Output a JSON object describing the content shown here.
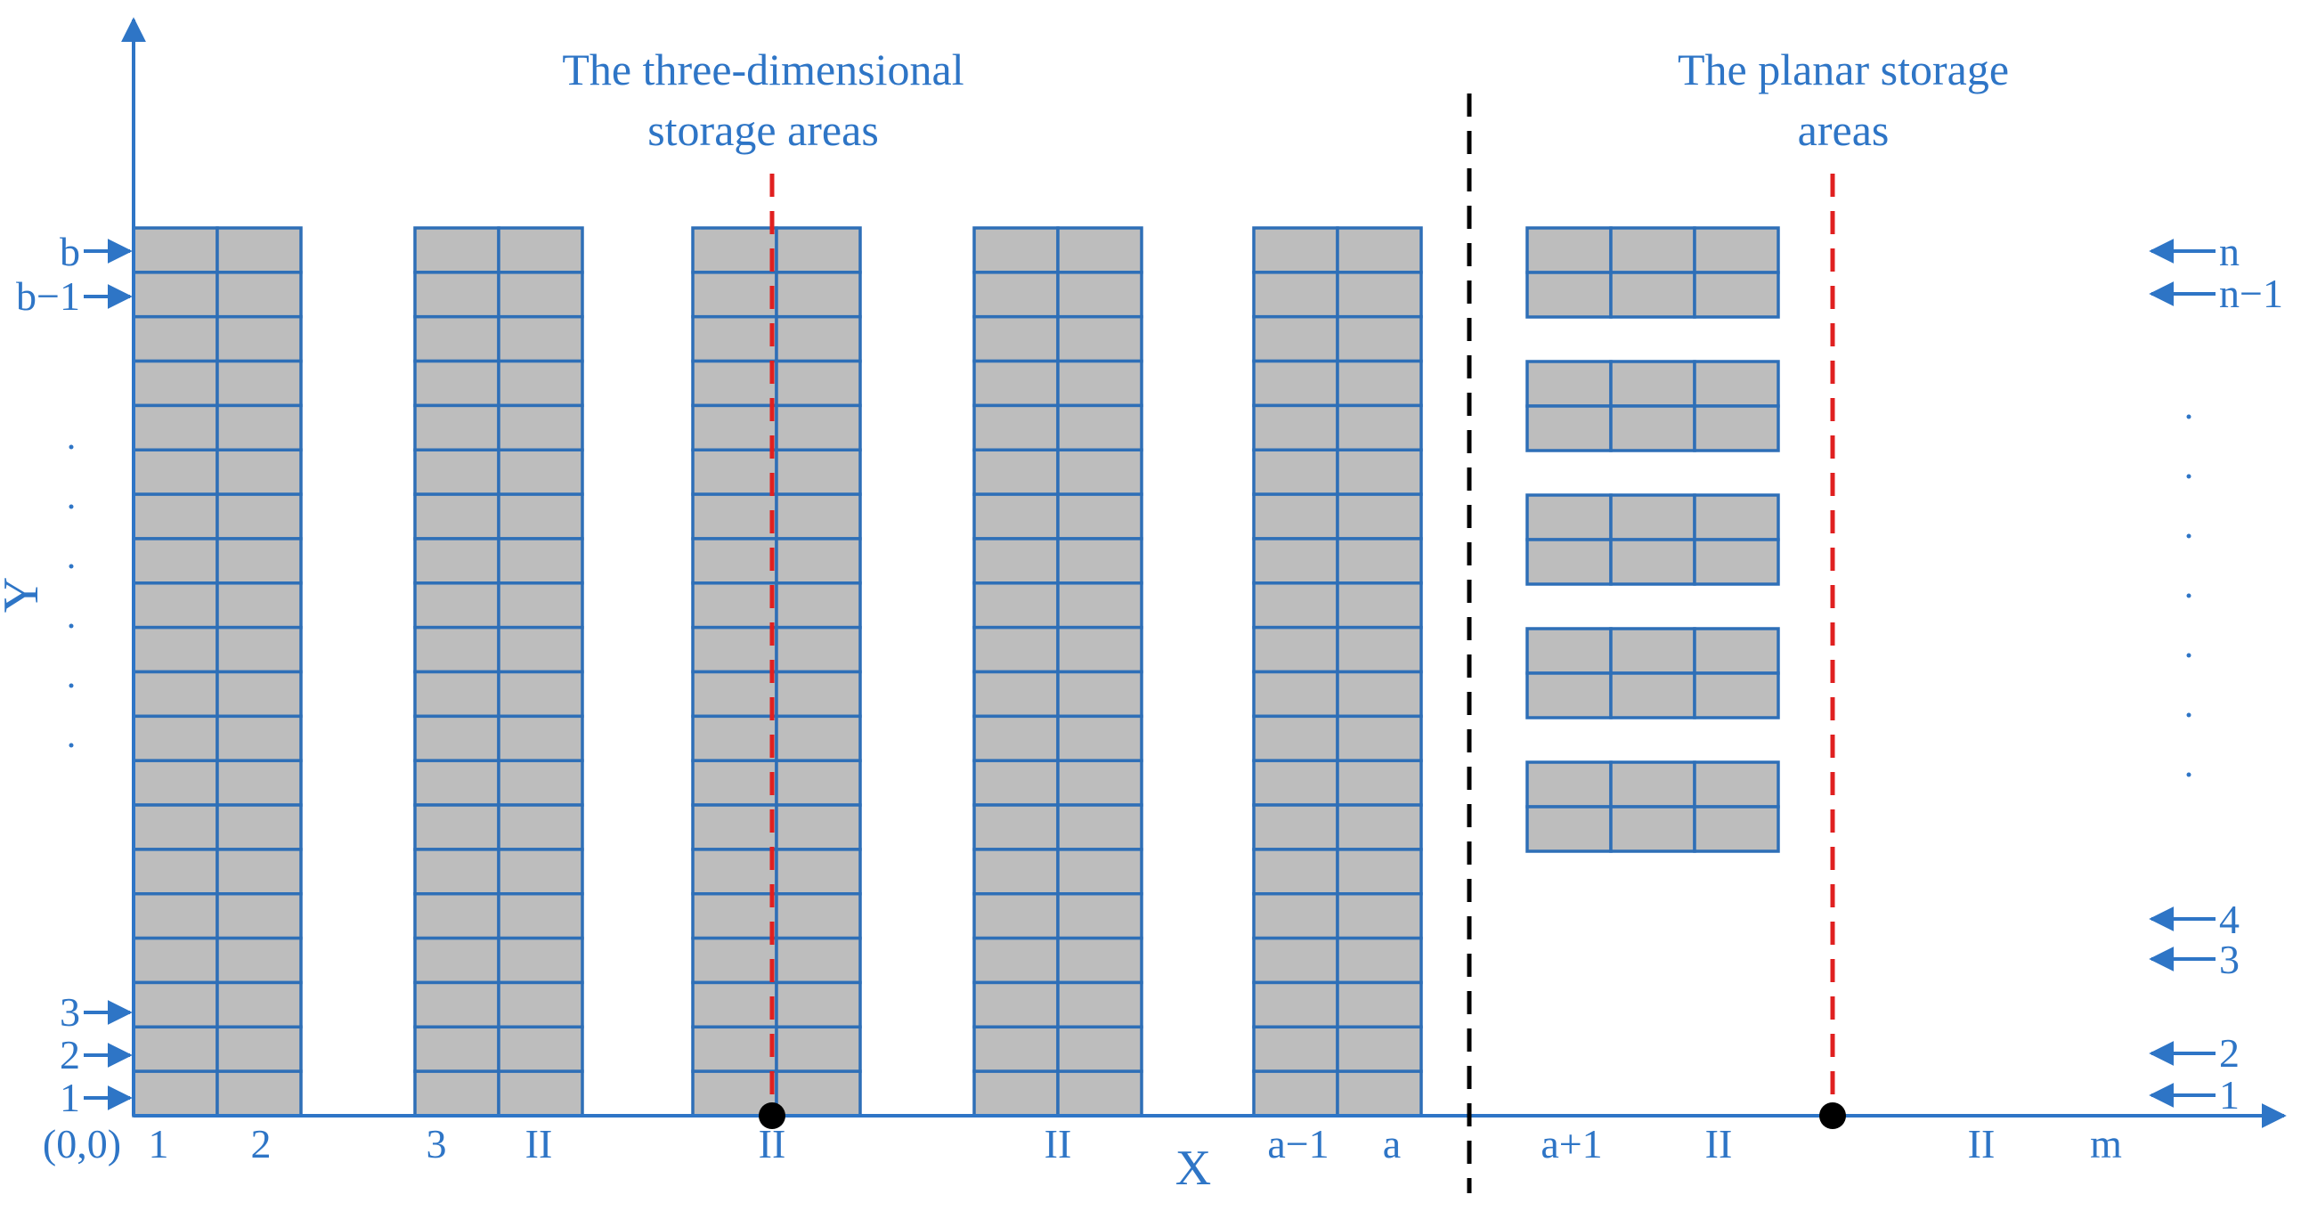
{
  "colors": {
    "blue": "#2E75C6",
    "rack_fill": "#BDBDBD",
    "rack_stroke": "#2E6FB7",
    "red": "#E02020",
    "black": "#000000",
    "background": "#FFFFFF"
  },
  "titles": {
    "three_d_line1": "The three-dimensional",
    "three_d_line2": "storage areas",
    "planar_line1": "The planar storage",
    "planar_line2": "areas"
  },
  "axes": {
    "x_label": "X",
    "y_label": "Y",
    "origin_label": "(0,0)"
  },
  "three_d_racks": {
    "column_count": 5,
    "rows_per_column": 20,
    "cells_per_row": 2
  },
  "planar_racks": {
    "block_count": 5,
    "rows_per_block": 2,
    "cells_per_row": 3
  },
  "x_tick_labels": [
    "1",
    "2",
    "3",
    "II",
    "II",
    "II",
    "a−1",
    "a",
    "a+1",
    "II",
    "II",
    "m"
  ],
  "left_row_labels": {
    "top": [
      "b",
      "b−1"
    ],
    "bottom": [
      "3",
      "2",
      "1"
    ],
    "ellipsis_dots": 6
  },
  "right_row_labels": {
    "top": [
      "n",
      "n−1"
    ],
    "bottom": [
      "4",
      "3",
      "2",
      "1"
    ],
    "ellipsis_dots": 7
  }
}
